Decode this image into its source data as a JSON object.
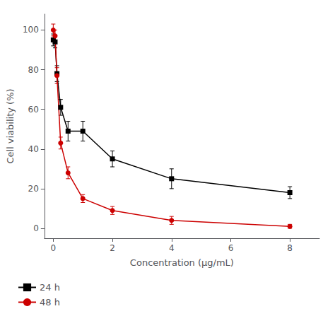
{
  "chart_data": {
    "type": "line",
    "xlabel": "Concentration (μg/mL)",
    "ylabel": "Cell viability (%)",
    "x": [
      0,
      0.0625,
      0.125,
      0.25,
      0.5,
      1,
      2,
      4,
      8
    ],
    "xlim": [
      -0.3,
      9.0
    ],
    "ylim": [
      -5,
      108
    ],
    "xticks": [
      0,
      2,
      4,
      6,
      8
    ],
    "yticks": [
      0,
      20,
      40,
      60,
      80,
      100
    ],
    "grid": false,
    "legend": "lower left",
    "series": [
      {
        "name": "24 h",
        "color": "#000000",
        "marker": "square",
        "values": [
          95,
          94,
          78,
          61,
          49,
          49,
          35,
          25,
          18
        ],
        "yerr": [
          3,
          3,
          4,
          4,
          5,
          5,
          4,
          5,
          3
        ]
      },
      {
        "name": "48 h",
        "color": "#cc0000",
        "marker": "circle",
        "values": [
          100,
          97,
          77,
          43,
          28,
          15,
          9,
          4,
          1
        ],
        "yerr": [
          3,
          3,
          4,
          3,
          3,
          2,
          2,
          2,
          1
        ]
      }
    ]
  }
}
